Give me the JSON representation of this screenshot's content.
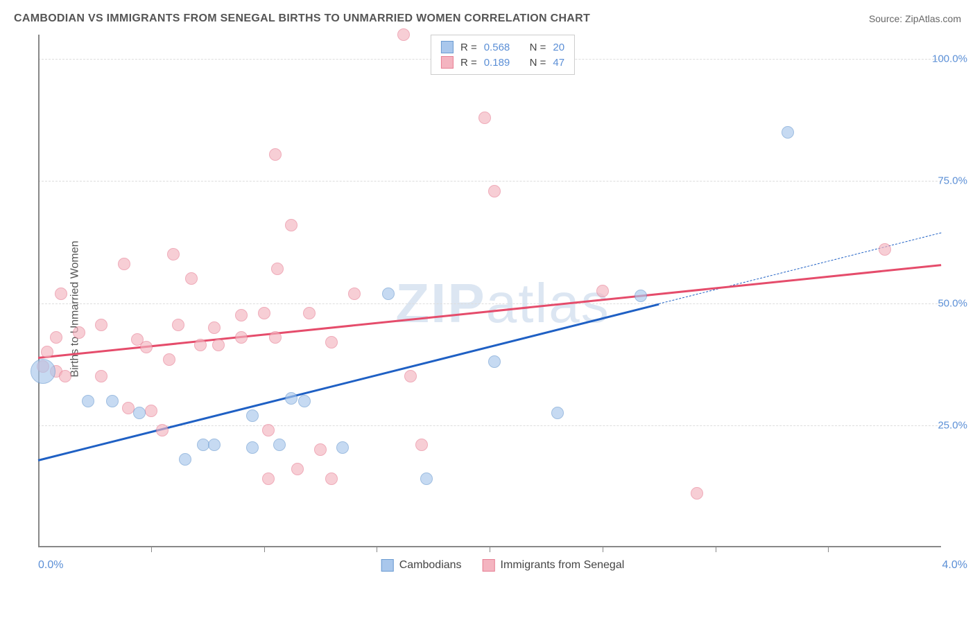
{
  "header": {
    "title": "CAMBODIAN VS IMMIGRANTS FROM SENEGAL BIRTHS TO UNMARRIED WOMEN CORRELATION CHART",
    "source": "Source: ZipAtlas.com"
  },
  "chart": {
    "type": "scatter",
    "ylabel": "Births to Unmarried Women",
    "watermark_zip": "ZIP",
    "watermark_atlas": "atlas",
    "xlim": [
      0.0,
      4.0
    ],
    "ylim": [
      0.0,
      105.0
    ],
    "ytick_values": [
      25.0,
      50.0,
      75.0,
      100.0
    ],
    "ytick_labels": [
      "25.0%",
      "50.0%",
      "75.0%",
      "100.0%"
    ],
    "xtick_values": [
      0.5,
      1.0,
      1.5,
      2.0,
      2.5,
      3.0,
      3.5
    ],
    "xaxis_left_label": "0.0%",
    "xaxis_right_label": "4.0%",
    "grid_color": "#dddddd",
    "axis_color": "#888888",
    "background_color": "#ffffff",
    "series": [
      {
        "name": "Cambodians",
        "fill": "#a9c7ec",
        "stroke": "#6b9bd1",
        "opacity": 0.65,
        "stroke_width": 1.5,
        "r": 0.568,
        "n": 20,
        "trend_color": "#1f60c4",
        "trend_y_at_xmin": 18.0,
        "trend_y_at_xmax": 64.5,
        "trend_solid_end_x": 2.75,
        "points": [
          {
            "x": 0.02,
            "y": 36.0,
            "size": 36
          },
          {
            "x": 0.22,
            "y": 30.0,
            "size": 18
          },
          {
            "x": 0.33,
            "y": 30.0,
            "size": 18
          },
          {
            "x": 0.45,
            "y": 27.5,
            "size": 18
          },
          {
            "x": 0.65,
            "y": 18.0,
            "size": 18
          },
          {
            "x": 0.73,
            "y": 21.0,
            "size": 18
          },
          {
            "x": 0.78,
            "y": 21.0,
            "size": 18
          },
          {
            "x": 0.95,
            "y": 27.0,
            "size": 18
          },
          {
            "x": 0.95,
            "y": 20.5,
            "size": 18
          },
          {
            "x": 1.07,
            "y": 21.0,
            "size": 18
          },
          {
            "x": 1.12,
            "y": 30.5,
            "size": 18
          },
          {
            "x": 1.18,
            "y": 30.0,
            "size": 18
          },
          {
            "x": 1.35,
            "y": 20.5,
            "size": 18
          },
          {
            "x": 1.55,
            "y": 52.0,
            "size": 18
          },
          {
            "x": 1.72,
            "y": 14.0,
            "size": 18
          },
          {
            "x": 2.02,
            "y": 38.0,
            "size": 18
          },
          {
            "x": 2.3,
            "y": 27.5,
            "size": 18
          },
          {
            "x": 2.67,
            "y": 51.5,
            "size": 18
          },
          {
            "x": 3.32,
            "y": 85.0,
            "size": 18
          }
        ]
      },
      {
        "name": "Immigants from Senegal",
        "label": "Immigrants from Senegal",
        "fill": "#f4b4c0",
        "stroke": "#e77f94",
        "opacity": 0.65,
        "stroke_width": 1.5,
        "r": 0.189,
        "n": 47,
        "trend_color": "#e54c6b",
        "trend_y_at_xmin": 39.0,
        "trend_y_at_xmax": 58.0,
        "points": [
          {
            "x": 0.02,
            "y": 37.0,
            "size": 18
          },
          {
            "x": 0.04,
            "y": 40.0,
            "size": 18
          },
          {
            "x": 0.08,
            "y": 36.0,
            "size": 18
          },
          {
            "x": 0.08,
            "y": 43.0,
            "size": 18
          },
          {
            "x": 0.1,
            "y": 52.0,
            "size": 18
          },
          {
            "x": 0.12,
            "y": 35.0,
            "size": 18
          },
          {
            "x": 0.18,
            "y": 44.0,
            "size": 18
          },
          {
            "x": 0.28,
            "y": 35.0,
            "size": 18
          },
          {
            "x": 0.28,
            "y": 45.5,
            "size": 18
          },
          {
            "x": 0.38,
            "y": 58.0,
            "size": 18
          },
          {
            "x": 0.4,
            "y": 28.5,
            "size": 18
          },
          {
            "x": 0.44,
            "y": 42.5,
            "size": 18
          },
          {
            "x": 0.48,
            "y": 41.0,
            "size": 18
          },
          {
            "x": 0.5,
            "y": 28.0,
            "size": 18
          },
          {
            "x": 0.55,
            "y": 24.0,
            "size": 18
          },
          {
            "x": 0.58,
            "y": 38.5,
            "size": 18
          },
          {
            "x": 0.6,
            "y": 60.0,
            "size": 18
          },
          {
            "x": 0.62,
            "y": 45.5,
            "size": 18
          },
          {
            "x": 0.68,
            "y": 55.0,
            "size": 18
          },
          {
            "x": 0.72,
            "y": 41.5,
            "size": 18
          },
          {
            "x": 0.78,
            "y": 45.0,
            "size": 18
          },
          {
            "x": 0.8,
            "y": 41.5,
            "size": 18
          },
          {
            "x": 0.9,
            "y": 47.5,
            "size": 18
          },
          {
            "x": 0.9,
            "y": 43.0,
            "size": 18
          },
          {
            "x": 1.0,
            "y": 48.0,
            "size": 18
          },
          {
            "x": 1.02,
            "y": 24.0,
            "size": 18
          },
          {
            "x": 1.02,
            "y": 14.0,
            "size": 18
          },
          {
            "x": 1.05,
            "y": 80.5,
            "size": 18
          },
          {
            "x": 1.05,
            "y": 43.0,
            "size": 18
          },
          {
            "x": 1.06,
            "y": 57.0,
            "size": 18
          },
          {
            "x": 1.12,
            "y": 66.0,
            "size": 18
          },
          {
            "x": 1.15,
            "y": 16.0,
            "size": 18
          },
          {
            "x": 1.2,
            "y": 48.0,
            "size": 18
          },
          {
            "x": 1.25,
            "y": 20.0,
            "size": 18
          },
          {
            "x": 1.3,
            "y": 14.0,
            "size": 18
          },
          {
            "x": 1.3,
            "y": 42.0,
            "size": 18
          },
          {
            "x": 1.4,
            "y": 52.0,
            "size": 18
          },
          {
            "x": 1.62,
            "y": 105.0,
            "size": 18
          },
          {
            "x": 1.65,
            "y": 35.0,
            "size": 18
          },
          {
            "x": 1.7,
            "y": 21.0,
            "size": 18
          },
          {
            "x": 1.98,
            "y": 88.0,
            "size": 18
          },
          {
            "x": 2.02,
            "y": 73.0,
            "size": 18
          },
          {
            "x": 2.5,
            "y": 52.5,
            "size": 18
          },
          {
            "x": 2.92,
            "y": 11.0,
            "size": 18
          },
          {
            "x": 3.75,
            "y": 61.0,
            "size": 18
          }
        ]
      }
    ],
    "legend_top": {
      "r_label": "R =",
      "n_label": "N ="
    },
    "legend_bottom": {
      "items": [
        "Cambodians",
        "Immigrants from Senegal"
      ]
    }
  }
}
